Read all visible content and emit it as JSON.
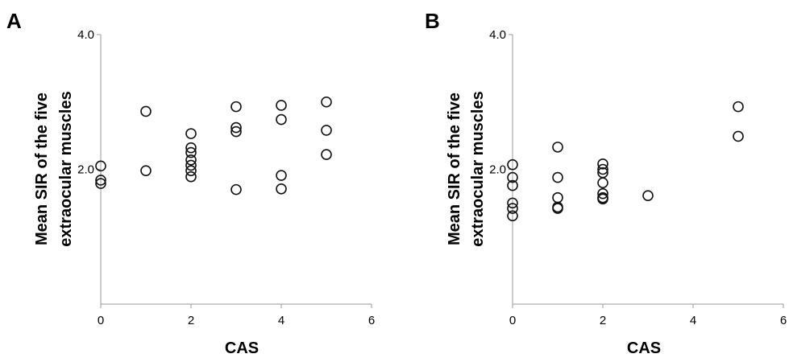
{
  "chart_data": [
    {
      "type": "scatter",
      "panel_label": "A",
      "title": "",
      "xlabel": "CAS",
      "ylabel_lines": [
        "Mean SIR of the five",
        "extraocular muscles"
      ],
      "xlim": [
        0,
        6
      ],
      "ylim": [
        0,
        4.0
      ],
      "xticks": [
        0,
        2,
        4,
        6
      ],
      "yticks": [
        2.0,
        4.0
      ],
      "xtick_labels": [
        "0",
        "2",
        "4",
        "6"
      ],
      "ytick_labels": [
        "2.0",
        "4.0"
      ],
      "grid": false,
      "legend": "none",
      "marker": "open-circle",
      "points": [
        {
          "x": 0,
          "y": 2.05
        },
        {
          "x": 0,
          "y": 1.84
        },
        {
          "x": 0,
          "y": 1.79
        },
        {
          "x": 1,
          "y": 2.86
        },
        {
          "x": 1,
          "y": 1.98
        },
        {
          "x": 2,
          "y": 2.53
        },
        {
          "x": 2,
          "y": 2.32
        },
        {
          "x": 2,
          "y": 2.25
        },
        {
          "x": 2,
          "y": 2.14
        },
        {
          "x": 2,
          "y": 2.06
        },
        {
          "x": 2,
          "y": 1.98
        },
        {
          "x": 2,
          "y": 1.89
        },
        {
          "x": 3,
          "y": 2.93
        },
        {
          "x": 3,
          "y": 2.62
        },
        {
          "x": 3,
          "y": 2.56
        },
        {
          "x": 3,
          "y": 1.7
        },
        {
          "x": 4,
          "y": 2.95
        },
        {
          "x": 4,
          "y": 2.74
        },
        {
          "x": 4,
          "y": 1.91
        },
        {
          "x": 4,
          "y": 1.71
        },
        {
          "x": 5,
          "y": 3.0
        },
        {
          "x": 5,
          "y": 2.58
        },
        {
          "x": 5,
          "y": 2.22
        }
      ]
    },
    {
      "type": "scatter",
      "panel_label": "B",
      "title": "",
      "xlabel": "CAS",
      "ylabel_lines": [
        "Mean SIR of the five",
        "extraocular muscles"
      ],
      "xlim": [
        0,
        6
      ],
      "ylim": [
        0,
        4.0
      ],
      "xticks": [
        0,
        2,
        4,
        6
      ],
      "yticks": [
        2.0,
        4.0
      ],
      "xtick_labels": [
        "0",
        "2",
        "4",
        "6"
      ],
      "ytick_labels": [
        "2.0",
        "4.0"
      ],
      "grid": false,
      "legend": "none",
      "marker": "open-circle",
      "points": [
        {
          "x": 0,
          "y": 2.07
        },
        {
          "x": 0,
          "y": 1.88
        },
        {
          "x": 0,
          "y": 1.76
        },
        {
          "x": 0,
          "y": 1.5
        },
        {
          "x": 0,
          "y": 1.42
        },
        {
          "x": 0,
          "y": 1.31
        },
        {
          "x": 1,
          "y": 2.33
        },
        {
          "x": 1,
          "y": 1.88
        },
        {
          "x": 1,
          "y": 1.58
        },
        {
          "x": 1,
          "y": 1.44
        },
        {
          "x": 1,
          "y": 1.42
        },
        {
          "x": 2,
          "y": 2.08
        },
        {
          "x": 2,
          "y": 2.0
        },
        {
          "x": 2,
          "y": 1.95
        },
        {
          "x": 2,
          "y": 1.8
        },
        {
          "x": 2,
          "y": 1.64
        },
        {
          "x": 2,
          "y": 1.58
        },
        {
          "x": 2,
          "y": 1.56
        },
        {
          "x": 3,
          "y": 1.61
        },
        {
          "x": 5,
          "y": 2.93
        },
        {
          "x": 5,
          "y": 2.49
        }
      ]
    }
  ]
}
